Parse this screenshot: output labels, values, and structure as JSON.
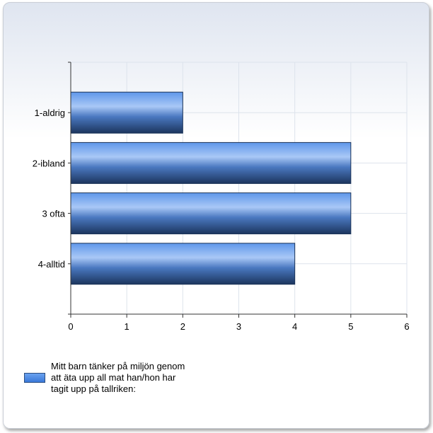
{
  "chart_data": {
    "type": "bar",
    "orientation": "horizontal",
    "categories": [
      "1-aldrig",
      "2-ibland",
      "3 ofta",
      "4-alltid"
    ],
    "series": [
      {
        "name": "Mitt barn tänker på miljön genom att äta upp all mat han/hon har tagit upp på tallriken:",
        "values": [
          2,
          5,
          5,
          4
        ]
      }
    ],
    "xlim": [
      0,
      6
    ],
    "xticks": [
      "0",
      "1",
      "2",
      "3",
      "4",
      "5",
      "6"
    ],
    "grid": true,
    "legend_position": "bottom-left",
    "bar_color": "#4a84dc"
  }
}
